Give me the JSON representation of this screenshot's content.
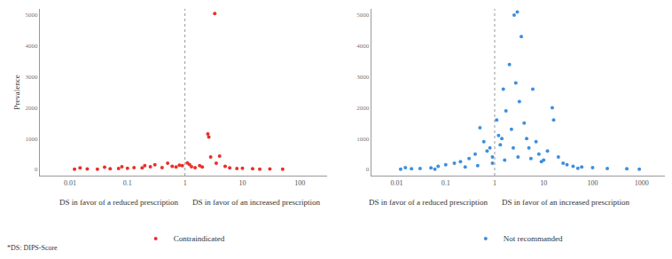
{
  "chart_data": [
    {
      "type": "scatter",
      "y_label": "Prevalence",
      "log": "x",
      "grid": false,
      "legend": "bottom",
      "xlim": [
        0.003,
        300
      ],
      "xticks": [
        0.01,
        0.1,
        1,
        10,
        100
      ],
      "ylim": [
        -200,
        5200
      ],
      "yticks": [
        0,
        1000,
        2000,
        3000,
        4000,
        5000
      ],
      "vline": 1,
      "annotations": [
        "DS in favor of a reduced prescription",
        "DS in favor of an increased prescription"
      ],
      "series": [
        {
          "name": "Contraindicated",
          "color": "#e8302a",
          "marker": "circle",
          "x": [
            0.012,
            0.02,
            0.03,
            0.05,
            0.07,
            0.1,
            0.13,
            0.18,
            0.25,
            0.3,
            0.4,
            0.5,
            0.6,
            0.7,
            0.8,
            0.9,
            1.1,
            1.2,
            1.3,
            1.5,
            1.8,
            2,
            2.5,
            2.6,
            2.8,
            3.3,
            3.5,
            4,
            5,
            6,
            8,
            10,
            15,
            20,
            30,
            50,
            0.015,
            0.04,
            0.08,
            0.2
          ],
          "values": [
            10,
            15,
            8,
            20,
            30,
            40,
            60,
            50,
            90,
            150,
            60,
            200,
            100,
            80,
            140,
            120,
            210,
            160,
            90,
            60,
            120,
            80,
            1150,
            1050,
            400,
            5050,
            200,
            430,
            100,
            50,
            30,
            40,
            20,
            10,
            15,
            5,
            50,
            70,
            90,
            120
          ]
        }
      ]
    },
    {
      "type": "scatter",
      "log": "x",
      "grid": false,
      "legend": "bottom",
      "xlim": [
        0.003,
        3000
      ],
      "xticks": [
        0.01,
        0.1,
        1,
        10,
        100,
        1000
      ],
      "ylim": [
        -200,
        5200
      ],
      "yticks": [
        0,
        1000,
        2000,
        3000,
        4000,
        5000
      ],
      "vline": 1,
      "annotations": [
        "DS in favor of a reduced prescription",
        "DS in favor of an increased prescription"
      ],
      "series": [
        {
          "name": "Not recommanded",
          "color": "#3d8fe0",
          "marker": "circle",
          "x": [
            0.012,
            0.02,
            0.03,
            0.05,
            0.07,
            0.1,
            0.15,
            0.2,
            0.3,
            0.4,
            0.5,
            0.6,
            0.7,
            0.8,
            0.9,
            1.1,
            1.2,
            1.3,
            1.5,
            1.7,
            2,
            2.2,
            2.5,
            2.7,
            2.9,
            3.2,
            3.5,
            4,
            4.5,
            5,
            6,
            7,
            8,
            10,
            12,
            15,
            16,
            20,
            25,
            30,
            40,
            60,
            100,
            200,
            500,
            900,
            0.25,
            0.45,
            0.9,
            1.6,
            3,
            9,
            50,
            0.015,
            0.06,
            1.4,
            2.4,
            5.5
          ],
          "values": [
            5,
            20,
            30,
            50,
            100,
            150,
            200,
            250,
            350,
            500,
            1350,
            900,
            600,
            700,
            400,
            1600,
            1100,
            800,
            2600,
            1900,
            3400,
            1300,
            5000,
            2800,
            5100,
            2200,
            4300,
            1500,
            1000,
            700,
            2600,
            900,
            500,
            300,
            600,
            2000,
            1600,
            400,
            200,
            150,
            100,
            80,
            60,
            30,
            20,
            10,
            80,
            120,
            200,
            300,
            400,
            250,
            40,
            60,
            10,
            1000,
            700,
            350
          ]
        }
      ]
    }
  ],
  "footnote": "*DS: DIPS-Score"
}
